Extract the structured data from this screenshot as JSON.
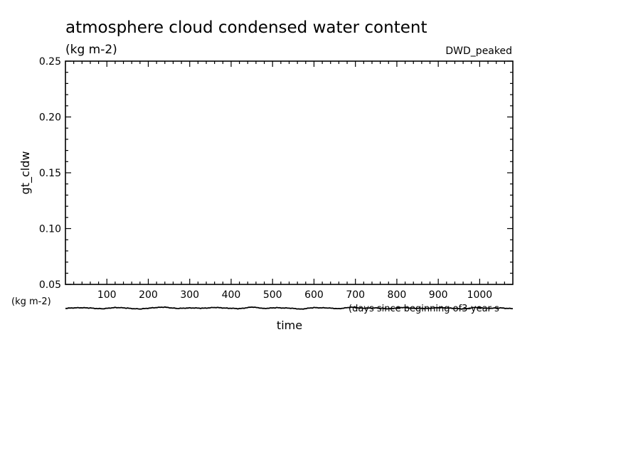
{
  "chart_data": {
    "type": "line",
    "title": "atmosphere cloud condensed water content",
    "subtitle": "(kg m-2)",
    "tag": "DWD_peaked",
    "ylabel": "gt_cldw",
    "yunit": "(kg m-2)",
    "xlabel": "time",
    "xunit": "(days since beginning of3-year s",
    "xlim": [
      0,
      1080
    ],
    "ylim": [
      0.05,
      0.25
    ],
    "xticks": [
      100,
      200,
      300,
      400,
      500,
      600,
      700,
      800,
      900,
      1000
    ],
    "xtick_labels": [
      "100",
      "200",
      "300",
      "400",
      "500",
      "600",
      "700",
      "800",
      "900",
      "1000"
    ],
    "yticks": [
      0.05,
      0.1,
      0.15,
      0.2,
      0.25
    ],
    "ytick_labels": [
      "0.05",
      "0.10",
      "0.15",
      "0.20",
      "0.25"
    ],
    "grid": false,
    "line_color": "#000000",
    "series": [
      {
        "x": [
          0,
          30,
          60,
          90,
          120,
          150,
          180,
          210,
          240,
          270,
          300,
          330,
          360,
          390,
          420,
          450,
          480,
          510,
          540,
          570,
          600,
          630,
          660,
          690,
          720,
          750,
          780,
          810,
          840,
          870,
          900,
          930,
          960,
          990,
          1020,
          1050,
          1080
        ],
        "values": [
          0.0285,
          0.0292,
          0.0288,
          0.0281,
          0.0294,
          0.0287,
          0.0279,
          0.0291,
          0.0296,
          0.0284,
          0.029,
          0.0286,
          0.0293,
          0.0288,
          0.0282,
          0.0297,
          0.0285,
          0.0291,
          0.0287,
          0.0279,
          0.0292,
          0.0289,
          0.0283,
          0.0295,
          0.0286,
          0.029,
          0.0281,
          0.0293,
          0.0287,
          0.0284,
          0.0291,
          0.0288,
          0.028,
          0.0294,
          0.0286,
          0.0289,
          0.0283
        ]
      }
    ]
  }
}
